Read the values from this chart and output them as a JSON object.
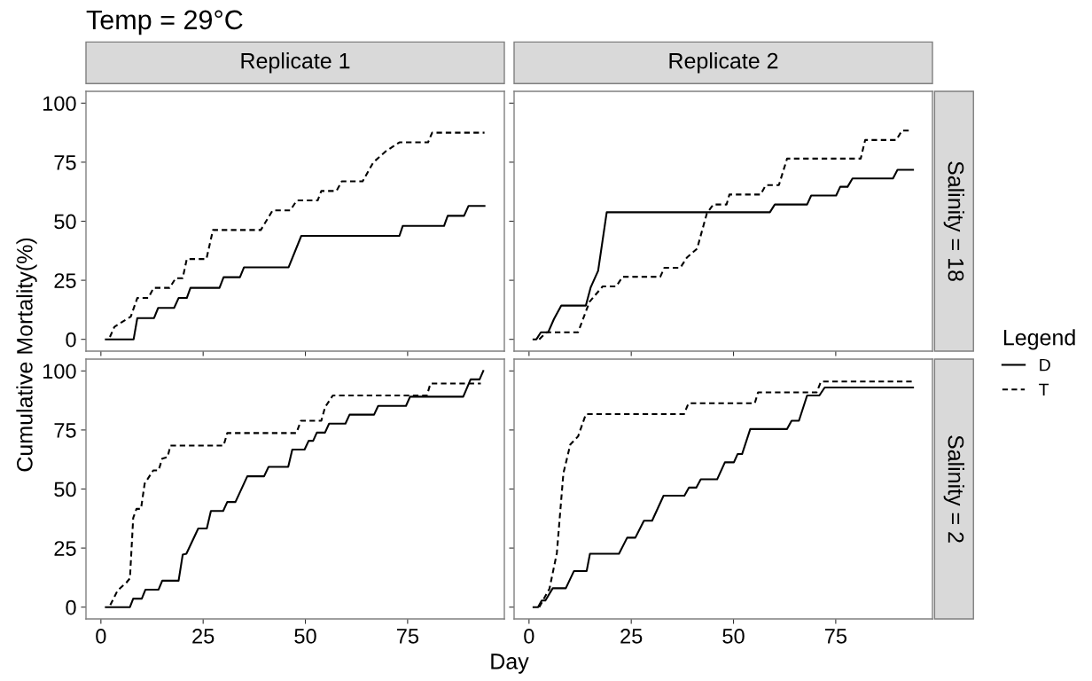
{
  "chart_data": [
    {
      "type": "line",
      "title": "Temp = 29°C",
      "subtitle": "Replicate 1",
      "ylabel": "Cumulative Mortality(%)",
      "xlim": [
        -3.65,
        98.65
      ],
      "ylim": [
        -5,
        105
      ],
      "xticks": [
        0,
        25,
        50,
        75
      ],
      "yticks": [
        0,
        25,
        50,
        75,
        100
      ],
      "tick_labels": "y",
      "grid": false,
      "legend": false,
      "series": [
        {
          "color": "#000000",
          "line_style": "solid",
          "x": [
            1.2,
            8,
            8.9,
            13,
            14,
            17.9,
            19,
            21,
            21.9,
            29,
            30,
            34,
            35,
            45.9,
            49,
            73,
            73.8,
            83.9,
            84.8,
            88.8,
            89.9,
            93.8
          ],
          "values": [
            0,
            0,
            9,
            9,
            13.3,
            13.3,
            17.5,
            17.5,
            21.8,
            21.8,
            26.3,
            26.3,
            30.5,
            30.5,
            43.8,
            43.8,
            48,
            48,
            52.3,
            52.3,
            56.5,
            56.5
          ]
        },
        {
          "color": "#000000",
          "line_style": "dashed",
          "x": [
            2.2,
            3.3,
            7.3,
            8.9,
            11.6,
            12.9,
            16.8,
            18.3,
            20,
            21,
            25.8,
            27.4,
            39.1,
            42,
            46.3,
            47.9,
            53,
            53.9,
            57.6,
            58.9,
            64,
            66.6,
            69.5,
            73,
            80,
            81,
            93.8
          ],
          "values": [
            1,
            5.3,
            9.6,
            17.5,
            17.5,
            21.8,
            21.8,
            25.9,
            25.9,
            34,
            34,
            46.3,
            46.3,
            54.6,
            54.6,
            58.8,
            58.8,
            62.8,
            62.8,
            66.9,
            66.9,
            74.9,
            79.4,
            83.4,
            83.4,
            87.5,
            87.5
          ]
        }
      ]
    },
    {
      "type": "line",
      "subtitle": "Replicate 2",
      "y2label": "Salinity = 18",
      "legend_title": "Legend",
      "xlim": [
        -3.65,
        98.65
      ],
      "ylim": [
        -5,
        105
      ],
      "xticks": [
        0,
        25,
        50,
        75
      ],
      "yticks": [
        0,
        25,
        50,
        75,
        100
      ],
      "tick_labels": false,
      "grid": false,
      "legend": "right",
      "series": [
        {
          "name": "D",
          "color": "#000000",
          "line_style": "solid",
          "x": [
            1.1,
            1.8,
            2.9,
            4.7,
            6.1,
            7.9,
            13.9,
            15.1,
            16.9,
            19,
            58.9,
            60.1,
            68,
            69,
            75.1,
            76.1,
            77.9,
            79.1,
            89,
            90.1,
            93.9
          ],
          "values": [
            0,
            0,
            3,
            3,
            8.6,
            14.3,
            14.3,
            22.1,
            29,
            53.8,
            53.8,
            57.1,
            57.1,
            60.9,
            60.9,
            64.6,
            64.6,
            68.1,
            68.1,
            71.8,
            71.8
          ]
        },
        {
          "name": "T",
          "color": "#000000",
          "line_style": "dashed",
          "x": [
            2.5,
            4.3,
            12,
            14.8,
            18,
            21.3,
            22.9,
            32.1,
            33.1,
            37,
            38.6,
            41.1,
            43.5,
            45.1,
            48.3,
            49,
            56.6,
            57.9,
            61.1,
            63.1,
            81.1,
            82.2,
            89.8,
            91.2,
            93.4
          ],
          "values": [
            0,
            3,
            3,
            15.9,
            22.4,
            22.4,
            26.5,
            26.5,
            30.3,
            30.3,
            34.6,
            38.4,
            53.4,
            57.1,
            57.1,
            61.3,
            61.3,
            65.3,
            65.3,
            76.5,
            76.5,
            84.4,
            84.4,
            88.4,
            88.4
          ]
        }
      ]
    },
    {
      "type": "line",
      "xlabel": "Day",
      "xlim": [
        -3.65,
        98.65
      ],
      "ylim": [
        -5,
        105
      ],
      "xticks": [
        0,
        25,
        50,
        75
      ],
      "yticks": [
        0,
        25,
        50,
        75,
        100
      ],
      "grid": false,
      "legend": false,
      "series": [
        {
          "color": "#000000",
          "line_style": "solid",
          "x": [
            1.2,
            7.1,
            7.9,
            10,
            10.9,
            14.1,
            15,
            19,
            20,
            20.9,
            23.8,
            25.9,
            26.9,
            29.9,
            30.9,
            32.9,
            35.8,
            39.9,
            41,
            45.8,
            46.8,
            49.8,
            50.8,
            51.9,
            52.8,
            54.8,
            55.8,
            59.8,
            60.8,
            66.8,
            67.8,
            74.6,
            75.6,
            88.6,
            90.4,
            92.6,
            93.5
          ],
          "values": [
            0,
            0,
            3.6,
            3.6,
            7.4,
            7.4,
            11.2,
            11.2,
            22.2,
            22.6,
            33.3,
            33.3,
            40.7,
            40.7,
            44.5,
            44.5,
            55.4,
            55.4,
            59.4,
            59.4,
            66.7,
            66.7,
            70.4,
            70.4,
            73.9,
            73.9,
            77.7,
            77.7,
            81.5,
            81.5,
            85.2,
            85.2,
            89.1,
            89.1,
            96.4,
            96.4,
            100
          ]
        },
        {
          "color": "#000000",
          "line_style": "dashed",
          "x": [
            2.3,
            4.1,
            6.2,
            7.1,
            7.9,
            8.7,
            9.8,
            10.7,
            12.8,
            14.1,
            15,
            16.3,
            17,
            30,
            30.9,
            47.8,
            48.9,
            53.9,
            54.8,
            56.7,
            79.7,
            80.6,
            92.9
          ],
          "values": [
            0.9,
            7.1,
            10.3,
            12.2,
            37.8,
            41.6,
            41.6,
            52.3,
            57.9,
            57.9,
            62.9,
            63.5,
            68.4,
            68.4,
            73.7,
            73.7,
            78.9,
            78.9,
            84.6,
            89.6,
            89.6,
            94.7,
            94.7
          ]
        }
      ]
    },
    {
      "type": "line",
      "y2label": "Salinity = 2",
      "xlim": [
        -3.65,
        98.65
      ],
      "ylim": [
        -5,
        105
      ],
      "xticks": [
        0,
        25,
        50,
        75
      ],
      "yticks": [
        0,
        25,
        50,
        75,
        100
      ],
      "tick_labels": "x",
      "grid": false,
      "legend": false,
      "series": [
        {
          "color": "#000000",
          "line_style": "solid",
          "x": [
            1.1,
            2.2,
            3.1,
            4,
            5.8,
            9,
            11,
            14.1,
            14.9,
            22,
            24,
            26,
            28.1,
            30.1,
            32.9,
            38,
            39.1,
            40.9,
            42,
            46,
            47.9,
            50.1,
            51,
            52.1,
            54.1,
            63.1,
            64.2,
            66,
            68,
            71,
            72.3,
            93.9
          ],
          "values": [
            0,
            0,
            2.8,
            2.8,
            8,
            8,
            15.3,
            15.3,
            22.6,
            22.6,
            29.4,
            29.4,
            36.6,
            36.6,
            47.2,
            47.2,
            50.6,
            50.6,
            54.1,
            54.1,
            61.3,
            61.3,
            64.8,
            64.8,
            75.4,
            75.4,
            78.9,
            78.9,
            89.6,
            89.6,
            93,
            93
          ]
        },
        {
          "color": "#000000",
          "line_style": "dashed",
          "x": [
            2.5,
            5,
            6.8,
            8.4,
            10.1,
            12,
            13.9,
            37.9,
            39,
            55.2,
            56,
            70.3,
            71.4,
            93.9
          ],
          "values": [
            0,
            7.8,
            22.8,
            56.6,
            68.9,
            72.3,
            81.7,
            81.7,
            86.3,
            86.3,
            90.9,
            90.9,
            95.5,
            95.5
          ]
        }
      ]
    }
  ]
}
